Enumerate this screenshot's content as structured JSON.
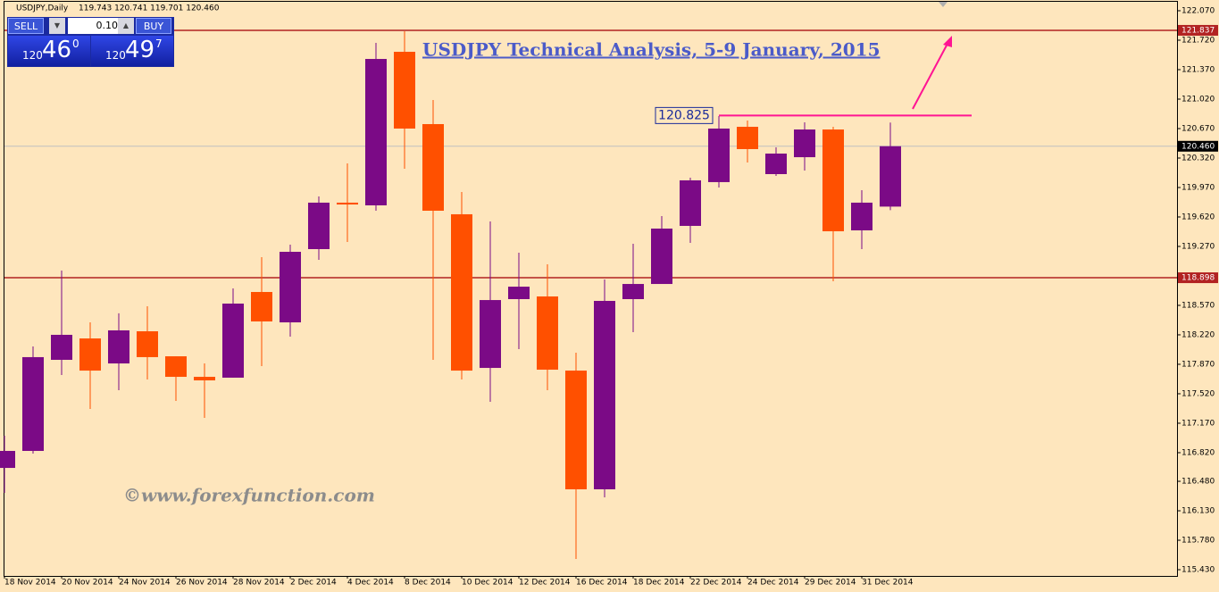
{
  "header": {
    "symbol": "USDJPY,Daily",
    "ohlc": "119.743 120.741 119.701 120.460"
  },
  "trade_panel": {
    "sell": "SELL",
    "buy": "BUY",
    "lot": "0.10",
    "bid": {
      "big": "120",
      "main": "46",
      "sup": "0"
    },
    "ask": {
      "big": "120",
      "main": "49",
      "sup": "7"
    }
  },
  "chart_data": {
    "type": "candlestick",
    "title": "USDJPY Technical Analysis, 5-9 January, 2015",
    "watermark": "©www.forexfunction.com",
    "categories": [
      "18 Nov 2014",
      null,
      "20 Nov 2014",
      null,
      "24 Nov 2014",
      null,
      "26 Nov 2014",
      null,
      "28 Nov 2014",
      null,
      "2 Dec 2014",
      null,
      "4 Dec 2014",
      null,
      "8 Dec 2014",
      null,
      "10 Dec 2014",
      null,
      "12 Dec 2014",
      null,
      "16 Dec 2014",
      null,
      "18 Dec 2014",
      null,
      "22 Dec 2014",
      null,
      "24 Dec 2014",
      null,
      "29 Dec 2014",
      null,
      "31 Dec 2014",
      null
    ],
    "open": [
      116.639,
      116.841,
      117.923,
      118.177,
      117.88,
      118.262,
      117.965,
      117.721,
      117.711,
      118.729,
      118.368,
      119.238,
      119.79,
      119.758,
      121.582,
      120.723,
      119.652,
      117.827,
      118.644,
      118.676,
      117.795,
      116.385,
      118.644,
      118.824,
      119.514,
      120.034,
      120.691,
      120.129,
      120.33,
      120.659,
      119.461,
      119.743
    ],
    "high": [
      117.021,
      118.082,
      118.983,
      118.368,
      118.475,
      118.559,
      117.965,
      117.88,
      118.771,
      119.142,
      119.291,
      119.864,
      120.256,
      121.688,
      121.826,
      121.009,
      119.917,
      119.567,
      119.196,
      119.058,
      118.008,
      118.877,
      119.302,
      119.63,
      120.087,
      120.818,
      120.765,
      120.447,
      120.744,
      120.691,
      119.938,
      120.741
    ],
    "low": [
      116.342,
      116.809,
      117.742,
      117.339,
      117.562,
      117.689,
      117.435,
      117.233,
      117.711,
      117.848,
      118.198,
      119.111,
      119.323,
      119.694,
      120.193,
      117.923,
      117.689,
      117.424,
      118.05,
      117.562,
      115.557,
      116.289,
      118.252,
      118.824,
      119.312,
      119.97,
      120.267,
      120.108,
      120.171,
      118.856,
      119.238,
      119.701
    ],
    "close": [
      116.841,
      117.955,
      118.22,
      117.795,
      118.273,
      117.955,
      117.721,
      117.679,
      118.591,
      118.379,
      119.206,
      119.79,
      119.768,
      121.497,
      120.67,
      119.694,
      117.795,
      118.633,
      118.792,
      117.806,
      116.385,
      118.623,
      118.824,
      119.482,
      120.055,
      120.67,
      120.426,
      120.373,
      120.659,
      119.45,
      119.79,
      120.46
    ],
    "up_color": "#7b0a86",
    "down_color": "#ff5000",
    "ylim": [
      115.356,
      122.176
    ],
    "yticks": [
      {
        "value": 122.07,
        "label": "122.070"
      },
      {
        "value": 121.72,
        "label": "121.720"
      },
      {
        "value": 121.37,
        "label": "121.370"
      },
      {
        "value": 121.02,
        "label": "121.020"
      },
      {
        "value": 120.67,
        "label": "120.670"
      },
      {
        "value": 120.32,
        "label": "120.320"
      },
      {
        "value": 119.97,
        "label": "119.970"
      },
      {
        "value": 119.62,
        "label": "119.620"
      },
      {
        "value": 119.27,
        "label": "119.270"
      },
      {
        "value": 118.57,
        "label": "118.570"
      },
      {
        "value": 118.22,
        "label": "118.220"
      },
      {
        "value": 117.87,
        "label": "117.870"
      },
      {
        "value": 117.52,
        "label": "117.520"
      },
      {
        "value": 117.17,
        "label": "117.170"
      },
      {
        "value": 116.82,
        "label": "116.820"
      },
      {
        "value": 116.48,
        "label": "116.480"
      },
      {
        "value": 116.13,
        "label": "116.130"
      },
      {
        "value": 115.78,
        "label": "115.780"
      },
      {
        "value": 115.43,
        "label": "115.430"
      }
    ],
    "levels": [
      121.837,
      118.898
    ],
    "level_color": "#b22222",
    "last_price": {
      "value": 120.46,
      "label": "120.460"
    },
    "resistance": 120.825,
    "resistance_color": "#ff1493"
  }
}
